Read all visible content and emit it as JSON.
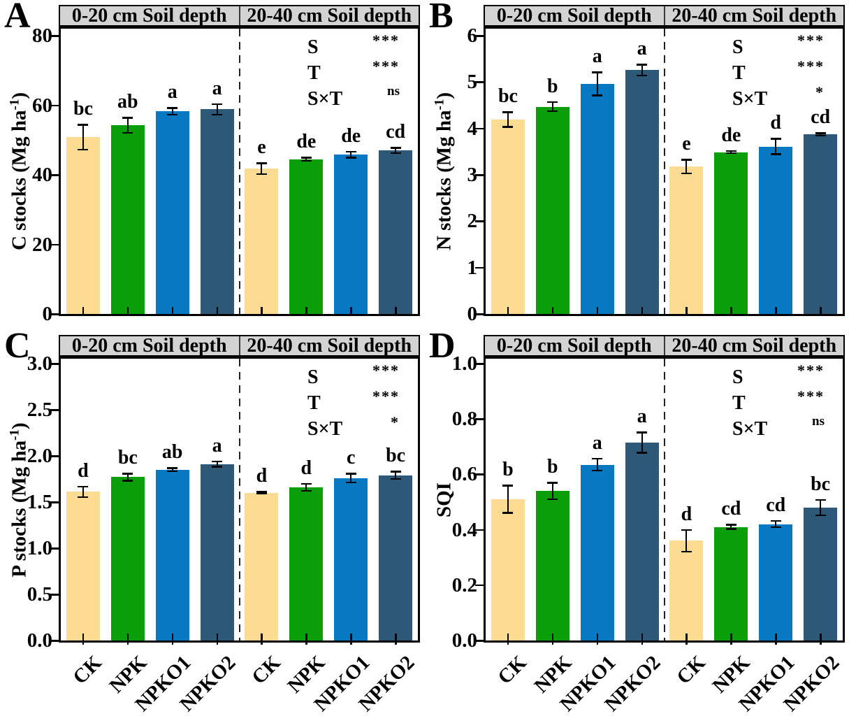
{
  "chart_data": {
    "type": "bar",
    "categories": [
      "CK",
      "NPK",
      "NPKO1",
      "NPKO2"
    ],
    "group_headers": [
      "0-20 cm Soil depth",
      "20-40 cm Soil depth"
    ],
    "bar_colors": [
      "#FBDC92",
      "#0A9E0A",
      "#0778C2",
      "#2D5878"
    ],
    "header_bg": "#d3d3d3",
    "panels": [
      {
        "label": "A",
        "ylabel_main": "C stocks (Mg ha",
        "ylabel_sup": "-1",
        "ylabel_end": ")",
        "ymax": 80,
        "yticks": [
          "0",
          "20",
          "40",
          "60",
          "80"
        ],
        "anova": [
          [
            "S",
            "***"
          ],
          [
            "T",
            "***"
          ],
          [
            "S×T",
            "ns"
          ]
        ],
        "groups": [
          {
            "depth": "0-20 cm",
            "values": [
              50.8,
              54.2,
              58.2,
              58.8
            ],
            "errors": [
              3.6,
              2.2,
              1.0,
              1.6
            ],
            "letters": [
              "bc",
              "ab",
              "a",
              "a"
            ]
          },
          {
            "depth": "20-40 cm",
            "values": [
              41.8,
              44.5,
              45.8,
              47.0
            ],
            "errors": [
              1.6,
              0.5,
              0.9,
              0.8
            ],
            "letters": [
              "e",
              "de",
              "de",
              "cd"
            ]
          }
        ],
        "show_xlabels": false
      },
      {
        "label": "B",
        "ylabel_main": "N stocks (Mg ha",
        "ylabel_sup": "-1",
        "ylabel_end": ")",
        "ymax": 6,
        "yticks": [
          "0",
          "1",
          "2",
          "3",
          "4",
          "5",
          "6"
        ],
        "anova": [
          [
            "S",
            "***"
          ],
          [
            "T",
            "***"
          ],
          [
            "S×T",
            "*"
          ]
        ],
        "groups": [
          {
            "depth": "0-20 cm",
            "values": [
              4.19,
              4.47,
              4.96,
              5.26
            ],
            "errors": [
              0.16,
              0.1,
              0.25,
              0.12
            ],
            "letters": [
              "bc",
              "b",
              "a",
              "a"
            ]
          },
          {
            "depth": "20-40 cm",
            "values": [
              3.18,
              3.49,
              3.61,
              3.87
            ],
            "errors": [
              0.15,
              0.03,
              0.17,
              0.03
            ],
            "letters": [
              "e",
              "de",
              "d",
              "cd"
            ]
          }
        ],
        "show_xlabels": false
      },
      {
        "label": "C",
        "ylabel_main": "P stocks (Mg ha",
        "ylabel_sup": "-1",
        "ylabel_end": ")",
        "ymax": 3.0,
        "yticks": [
          "0.0",
          "0.5",
          "1.0",
          "1.5",
          "2.0",
          "2.5",
          "3.0"
        ],
        "anova": [
          [
            "S",
            "***"
          ],
          [
            "T",
            "***"
          ],
          [
            "S×T",
            "*"
          ]
        ],
        "groups": [
          {
            "depth": "0-20 cm",
            "values": [
              1.61,
              1.77,
              1.85,
              1.91
            ],
            "errors": [
              0.06,
              0.04,
              0.02,
              0.03
            ],
            "letters": [
              "d",
              "bc",
              "ab",
              "a"
            ]
          },
          {
            "depth": "20-40 cm",
            "values": [
              1.6,
              1.66,
              1.76,
              1.79
            ],
            "errors": [
              0.01,
              0.04,
              0.05,
              0.04
            ],
            "letters": [
              "d",
              "d",
              "c",
              "bc"
            ]
          }
        ],
        "show_xlabels": true
      },
      {
        "label": "D",
        "ylabel_main": "SQI",
        "ylabel_sup": "",
        "ylabel_end": "",
        "ymax": 1.0,
        "yticks": [
          "0.0",
          "0.2",
          "0.4",
          "0.6",
          "0.8",
          "1.0"
        ],
        "anova": [
          [
            "S",
            "***"
          ],
          [
            "T",
            "***"
          ],
          [
            "S×T",
            "ns"
          ]
        ],
        "groups": [
          {
            "depth": "0-20 cm",
            "values": [
              0.51,
              0.54,
              0.635,
              0.715
            ],
            "errors": [
              0.05,
              0.03,
              0.022,
              0.037
            ],
            "letters": [
              "b",
              "b",
              "a",
              "a"
            ]
          },
          {
            "depth": "20-40 cm",
            "values": [
              0.36,
              0.41,
              0.42,
              0.48
            ],
            "errors": [
              0.04,
              0.008,
              0.012,
              0.028
            ],
            "letters": [
              "d",
              "cd",
              "cd",
              "bc"
            ]
          }
        ],
        "show_xlabels": true
      }
    ]
  }
}
